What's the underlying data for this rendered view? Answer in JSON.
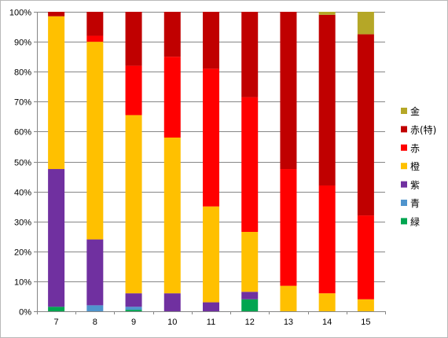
{
  "chart_data": {
    "type": "bar",
    "stacked": true,
    "percent_stacked": true,
    "categories": [
      "7",
      "8",
      "9",
      "10",
      "11",
      "12",
      "13",
      "14",
      "15"
    ],
    "series": [
      {
        "name": "緑",
        "color": "#00A550",
        "values": [
          1.5,
          0,
          0.5,
          0,
          0,
          4,
          0,
          0,
          0
        ]
      },
      {
        "name": "青",
        "color": "#4F94CD",
        "values": [
          0,
          2,
          1,
          0,
          0,
          0,
          0,
          0,
          0
        ]
      },
      {
        "name": "紫",
        "color": "#7030A0",
        "values": [
          46,
          22,
          4.5,
          6,
          3,
          2.5,
          0,
          0,
          0
        ]
      },
      {
        "name": "橙",
        "color": "#FFC000",
        "values": [
          51,
          66,
          59.5,
          52,
          32,
          20,
          8.5,
          6,
          4
        ]
      },
      {
        "name": "赤",
        "color": "#FF0000",
        "values": [
          0,
          2,
          16.5,
          27,
          46,
          45,
          39,
          36,
          28
        ]
      },
      {
        "name": "赤(特)",
        "color": "#C00000",
        "values": [
          1.5,
          8,
          18,
          15,
          19,
          28.5,
          52.5,
          57,
          60.5
        ]
      },
      {
        "name": "金",
        "color": "#B5A727",
        "values": [
          0,
          0,
          0,
          0,
          0,
          0,
          0,
          1,
          7.5
        ]
      }
    ],
    "y_ticks": [
      "0%",
      "10%",
      "20%",
      "30%",
      "40%",
      "50%",
      "60%",
      "70%",
      "80%",
      "90%",
      "100%"
    ],
    "ylim": [
      0,
      100
    ],
    "grid": true,
    "legend_position": "right",
    "legend_order": [
      "金",
      "赤(特)",
      "赤",
      "橙",
      "紫",
      "青",
      "緑"
    ]
  }
}
